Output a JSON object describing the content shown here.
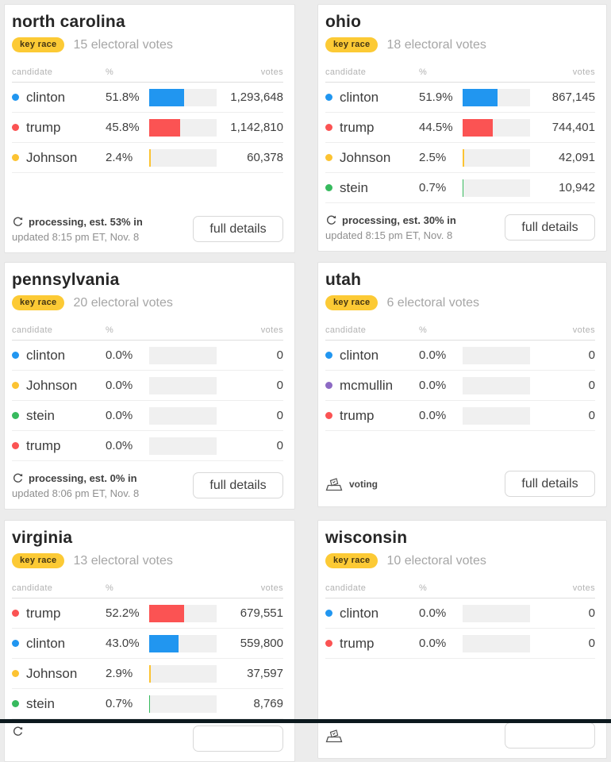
{
  "page": {
    "background_color": "#ececec",
    "bottom_bar_color": "#0c191e"
  },
  "labels": {
    "candidate": "candidate",
    "percent": "%",
    "votes": "votes"
  },
  "colors": {
    "clinton_blue": "#2196f0",
    "trump_red": "#fb5353",
    "johnson_yellow": "#fcc332",
    "stein_green": "#37ba5e",
    "mcmullin_purple": "#8d6ac4",
    "badge_bg": "#fcca35",
    "bar_track": "#f0f0f0"
  },
  "cards": [
    {
      "state": "north carolina",
      "badge": "key race",
      "electoral_votes": "15 electoral votes",
      "rows": [
        {
          "name": "clinton",
          "color": "#2196f0",
          "pct": "51.8%",
          "pct_value": 51.8,
          "votes": "1,293,648"
        },
        {
          "name": "trump",
          "color": "#fb5353",
          "pct": "45.8%",
          "pct_value": 45.8,
          "votes": "1,142,810"
        },
        {
          "name": "Johnson",
          "color": "#fcc332",
          "pct": "2.4%",
          "pct_value": 2.4,
          "votes": "60,378"
        }
      ],
      "footer": {
        "type": "processing",
        "status": "processing, est. 53% in",
        "updated": "updated 8:15 pm ET, Nov. 8",
        "button": "full details"
      }
    },
    {
      "state": "ohio",
      "badge": "key race",
      "electoral_votes": "18 electoral votes",
      "rows": [
        {
          "name": "clinton",
          "color": "#2196f0",
          "pct": "51.9%",
          "pct_value": 51.9,
          "votes": "867,145"
        },
        {
          "name": "trump",
          "color": "#fb5353",
          "pct": "44.5%",
          "pct_value": 44.5,
          "votes": "744,401"
        },
        {
          "name": "Johnson",
          "color": "#fcc332",
          "pct": "2.5%",
          "pct_value": 2.5,
          "votes": "42,091"
        },
        {
          "name": "stein",
          "color": "#37ba5e",
          "pct": "0.7%",
          "pct_value": 0.7,
          "votes": "10,942"
        }
      ],
      "footer": {
        "type": "processing",
        "status": "processing, est. 30% in",
        "updated": "updated 8:15 pm ET, Nov. 8",
        "button": "full details"
      }
    },
    {
      "state": "pennsylvania",
      "badge": "key race",
      "electoral_votes": "20 electoral votes",
      "rows": [
        {
          "name": "clinton",
          "color": "#2196f0",
          "pct": "0.0%",
          "pct_value": 0,
          "votes": "0"
        },
        {
          "name": "Johnson",
          "color": "#fcc332",
          "pct": "0.0%",
          "pct_value": 0,
          "votes": "0"
        },
        {
          "name": "stein",
          "color": "#37ba5e",
          "pct": "0.0%",
          "pct_value": 0,
          "votes": "0"
        },
        {
          "name": "trump",
          "color": "#fb5353",
          "pct": "0.0%",
          "pct_value": 0,
          "votes": "0"
        }
      ],
      "footer": {
        "type": "processing",
        "status": "processing, est. 0% in",
        "updated": "updated 8:06 pm ET, Nov. 8",
        "button": "full details"
      }
    },
    {
      "state": "utah",
      "badge": "key race",
      "electoral_votes": "6 electoral votes",
      "rows": [
        {
          "name": "clinton",
          "color": "#2196f0",
          "pct": "0.0%",
          "pct_value": 0,
          "votes": "0"
        },
        {
          "name": "mcmullin",
          "color": "#8d6ac4",
          "pct": "0.0%",
          "pct_value": 0,
          "votes": "0"
        },
        {
          "name": "trump",
          "color": "#fb5353",
          "pct": "0.0%",
          "pct_value": 0,
          "votes": "0"
        }
      ],
      "footer": {
        "type": "voting",
        "status": "voting",
        "button": "full details"
      }
    },
    {
      "state": "virginia",
      "badge": "key race",
      "electoral_votes": "13 electoral votes",
      "rows": [
        {
          "name": "trump",
          "color": "#fb5353",
          "pct": "52.2%",
          "pct_value": 52.2,
          "votes": "679,551"
        },
        {
          "name": "clinton",
          "color": "#2196f0",
          "pct": "43.0%",
          "pct_value": 43.0,
          "votes": "559,800"
        },
        {
          "name": "Johnson",
          "color": "#fcc332",
          "pct": "2.9%",
          "pct_value": 2.9,
          "votes": "37,597"
        },
        {
          "name": "stein",
          "color": "#37ba5e",
          "pct": "0.7%",
          "pct_value": 0.7,
          "votes": "8,769"
        }
      ],
      "footer": {
        "type": "processing",
        "status": "",
        "updated": "",
        "button": ""
      }
    },
    {
      "state": "wisconsin",
      "badge": "key race",
      "electoral_votes": "10 electoral votes",
      "rows": [
        {
          "name": "clinton",
          "color": "#2196f0",
          "pct": "0.0%",
          "pct_value": 0,
          "votes": "0"
        },
        {
          "name": "trump",
          "color": "#fb5353",
          "pct": "0.0%",
          "pct_value": 0,
          "votes": "0"
        }
      ],
      "footer": {
        "type": "voting",
        "status": "",
        "button": ""
      }
    }
  ]
}
